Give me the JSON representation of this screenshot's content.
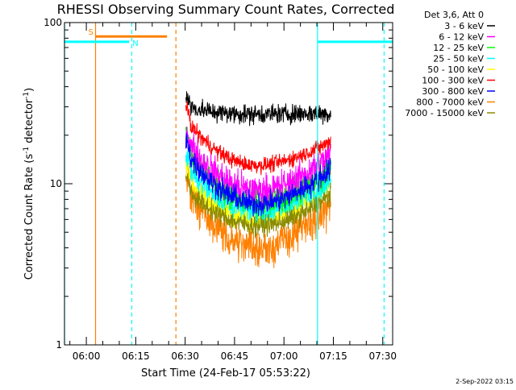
{
  "chart_data": {
    "type": "line",
    "title": "RHESSI Observing Summary Count Rates, Corrected",
    "xlabel": "Start Time (24-Feb-17 05:53:22)",
    "ylabel": "Corrected Count Rate (s⁻¹ detector⁻¹)",
    "ylabel_parts": {
      "a": "Corrected Count Rate (s",
      "sup1": "-1",
      "b": " detector",
      "sup2": "-1",
      "c": ")"
    },
    "y_scale": "log",
    "ylim": [
      1,
      100
    ],
    "y_ticks": [
      {
        "value": 1,
        "label": "1"
      },
      {
        "value": 10,
        "label": "10"
      },
      {
        "value": 100,
        "label": "100"
      }
    ],
    "xlim_minutes": [
      353.37,
      453.0
    ],
    "x_ticks": [
      {
        "minutes": 360,
        "label": "06:00"
      },
      {
        "minutes": 375,
        "label": "06:15"
      },
      {
        "minutes": 390,
        "label": "06:30"
      },
      {
        "minutes": 405,
        "label": "06:45"
      },
      {
        "minutes": 420,
        "label": "07:00"
      },
      {
        "minutes": 435,
        "label": "07:15"
      },
      {
        "minutes": 450,
        "label": "07:30"
      }
    ],
    "legend_position": "right, outside plot",
    "legend_title": "Det 3,6, Att 0",
    "series": [
      {
        "name": "3 - 6 keV",
        "color": "#000000",
        "start": 31,
        "end": 27,
        "mid": 27,
        "noise": 0.15
      },
      {
        "name": "6 - 12 keV",
        "color": "#ff00ff",
        "start": 20,
        "end": 16,
        "mid": 9,
        "noise": 0.25
      },
      {
        "name": "12 - 25 keV",
        "color": "#00ff00",
        "start": 19,
        "end": 13,
        "mid": 7.5,
        "noise": 0.22
      },
      {
        "name": "25 - 50 keV",
        "color": "#00ffff",
        "start": 14,
        "end": 11,
        "mid": 6.8,
        "noise": 0.2
      },
      {
        "name": "50 - 100 keV",
        "color": "#ffff00",
        "start": 12,
        "end": 11,
        "mid": 6,
        "noise": 0.2
      },
      {
        "name": "100 - 300 keV",
        "color": "#ff0000",
        "start": 27,
        "end": 19,
        "mid": 13,
        "noise": 0.12
      },
      {
        "name": "300 - 800 keV",
        "color": "#0000ff",
        "start": 17,
        "end": 13,
        "mid": 7.5,
        "noise": 0.18
      },
      {
        "name": "800 - 7000 keV",
        "color": "#ff8000",
        "start": 10,
        "end": 8,
        "mid": 4,
        "noise": 0.3
      },
      {
        "name": "7000 - 15000 keV",
        "color": "#8b8b00",
        "start": 10,
        "end": 9,
        "mid": 5.5,
        "noise": 0.15
      }
    ],
    "data_interval_minutes": [
      390.2,
      434.2
    ],
    "markers": [
      {
        "label": "S",
        "color": "#ff8000",
        "start_minutes": 362.8,
        "end_minutes": 384.5,
        "level": 82,
        "solid_line_minutes": 362.8,
        "dashed_line_minutes": 387.2
      },
      {
        "label": "N",
        "color": "#00ffff",
        "start_minutes": 353.37,
        "end_minutes": 373.0,
        "level": 76,
        "solid_line_minutes": 353.37,
        "dashed_line_minutes": 373.8
      },
      {
        "label": "",
        "color": "#00ffff",
        "start_minutes": 430.2,
        "end_minutes": 453.0,
        "level": 76,
        "solid_line_minutes": 430.2,
        "dashed_line_minutes": 450.4
      }
    ]
  },
  "footer": {
    "date": "2-Sep-2022 03:15"
  }
}
